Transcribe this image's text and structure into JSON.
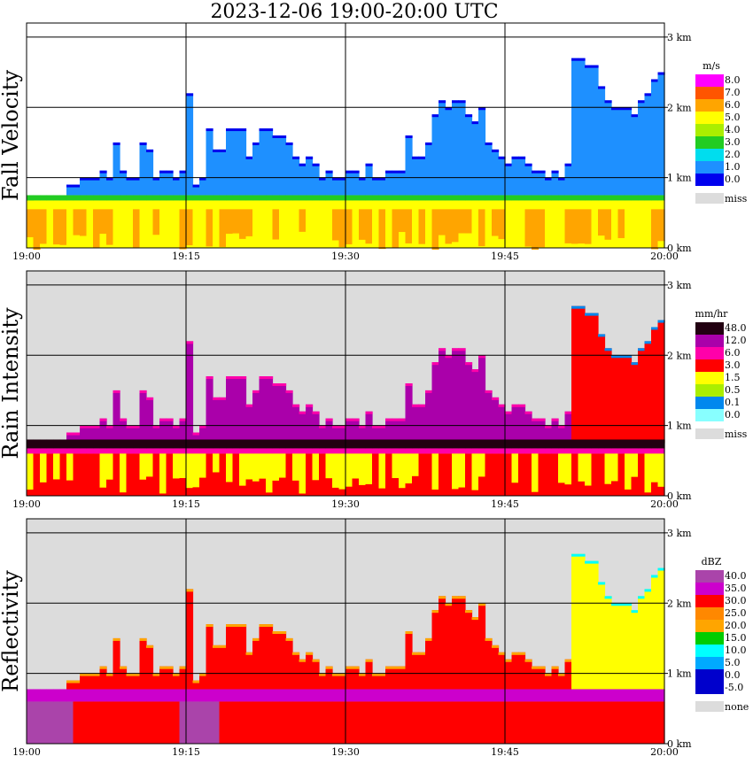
{
  "title": "2023-12-06   19:00-20:00 UTC",
  "x_ticks": [
    "19:00",
    "19:15",
    "19:30",
    "19:45",
    "20:00"
  ],
  "height_ticks": [
    "0 km",
    "1 km",
    "2 km",
    "3 km"
  ],
  "colors": {
    "missing_background": "#dcdcdc",
    "grid": "#000000",
    "fallvel": [
      "#0000ee",
      "#1e90ff",
      "#00ddee",
      "#22cc22",
      "#aaee00",
      "#ffff00",
      "#ffa500",
      "#ff5500",
      "#ff00ff"
    ],
    "rain": [
      "#ffffff",
      "#88ffff",
      "#0088ee",
      "#22cc22",
      "#aaee00",
      "#ffff00",
      "#ff8800",
      "#ff0000",
      "#ff00aa",
      "#aa00aa",
      "#220011"
    ],
    "dbz": [
      "#0000cc",
      "#00aaff",
      "#00ffff",
      "#00cc00",
      "#ffff00",
      "#ffa500",
      "#ff8800",
      "#ff0000",
      "#cc00cc",
      "#aa44aa"
    ]
  },
  "chart_data": [
    {
      "type": "heatmap",
      "panel": "Fall Velocity",
      "ylabel": "Fall Velocity",
      "unit": "m/s",
      "x_range": [
        "19:00",
        "20:00"
      ],
      "y_range_km": [
        0,
        3.2
      ],
      "legend_labels": [
        "8.0",
        "7.0",
        "6.0",
        "5.0",
        "4.0",
        "3.0",
        "2.0",
        "1.0",
        "0.0"
      ],
      "legend_missing": "miss",
      "echo_top_km": [
        0.7,
        0.5,
        0.3,
        0.4,
        0.6,
        0.3,
        0.9,
        0.9,
        1.0,
        1.0,
        1.0,
        1.1,
        1.0,
        1.5,
        1.1,
        1.0,
        1.0,
        1.5,
        1.4,
        1.0,
        1.1,
        1.1,
        1.0,
        1.1,
        2.2,
        0.9,
        1.0,
        1.7,
        1.4,
        1.4,
        1.7,
        1.7,
        1.7,
        1.3,
        1.5,
        1.7,
        1.7,
        1.6,
        1.6,
        1.5,
        1.3,
        1.2,
        1.3,
        1.2,
        1.0,
        1.1,
        1.0,
        1.0,
        1.1,
        1.1,
        1.0,
        1.2,
        1.0,
        1.0,
        1.1,
        1.1,
        1.1,
        1.6,
        1.3,
        1.3,
        1.5,
        1.9,
        2.1,
        2.0,
        2.1,
        2.1,
        1.9,
        1.8,
        2.0,
        1.5,
        1.4,
        1.3,
        1.2,
        1.3,
        1.3,
        1.2,
        1.1,
        1.1,
        1.0,
        1.1,
        1.0,
        1.2,
        2.7,
        2.7,
        2.6,
        2.6,
        2.3,
        2.1,
        2.0,
        2.0,
        2.0,
        1.9,
        2.1,
        2.2,
        2.4,
        2.5
      ]
    },
    {
      "type": "heatmap",
      "panel": "Rain Intensity",
      "ylabel": "Rain Intensity",
      "unit": "mm/hr",
      "x_range": [
        "19:00",
        "20:00"
      ],
      "y_range_km": [
        0,
        3.2
      ],
      "legend_labels": [
        "48.0",
        "12.0",
        "6.0",
        "3.0",
        "1.5",
        "0.5",
        "0.1",
        "0.0"
      ],
      "legend_missing": "miss",
      "echo_top_km": [
        0.7,
        0.5,
        0.3,
        0.4,
        0.6,
        0.3,
        0.9,
        0.9,
        1.0,
        1.0,
        1.0,
        1.1,
        1.0,
        1.5,
        1.1,
        1.0,
        1.0,
        1.5,
        1.4,
        1.0,
        1.1,
        1.1,
        1.0,
        1.1,
        2.2,
        0.9,
        1.0,
        1.7,
        1.4,
        1.4,
        1.7,
        1.7,
        1.7,
        1.3,
        1.5,
        1.7,
        1.7,
        1.6,
        1.6,
        1.5,
        1.3,
        1.2,
        1.3,
        1.2,
        1.0,
        1.1,
        1.0,
        1.0,
        1.1,
        1.1,
        1.0,
        1.2,
        1.0,
        1.0,
        1.1,
        1.1,
        1.1,
        1.6,
        1.3,
        1.3,
        1.5,
        1.9,
        2.1,
        2.0,
        2.1,
        2.1,
        1.9,
        1.8,
        2.0,
        1.5,
        1.4,
        1.3,
        1.2,
        1.3,
        1.3,
        1.2,
        1.1,
        1.1,
        1.0,
        1.1,
        1.0,
        1.2,
        2.7,
        2.7,
        2.6,
        2.6,
        2.3,
        2.1,
        2.0,
        2.0,
        2.0,
        1.9,
        2.1,
        2.2,
        2.4,
        2.5
      ]
    },
    {
      "type": "heatmap",
      "panel": "Reflectivity",
      "ylabel": "Reflectivity",
      "unit": "dBZ",
      "x_range": [
        "19:00",
        "20:00"
      ],
      "y_range_km": [
        0,
        3.2
      ],
      "legend_labels": [
        "40.0",
        "35.0",
        "30.0",
        "25.0",
        "20.0",
        "15.0",
        "10.0",
        "5.0",
        "0.0",
        "-5.0"
      ],
      "legend_missing": "none",
      "echo_top_km": [
        0.7,
        0.5,
        0.3,
        0.4,
        0.6,
        0.3,
        0.9,
        0.9,
        1.0,
        1.0,
        1.0,
        1.1,
        1.0,
        1.5,
        1.1,
        1.0,
        1.0,
        1.5,
        1.4,
        1.0,
        1.1,
        1.1,
        1.0,
        1.1,
        2.2,
        0.9,
        1.0,
        1.7,
        1.4,
        1.4,
        1.7,
        1.7,
        1.7,
        1.3,
        1.5,
        1.7,
        1.7,
        1.6,
        1.6,
        1.5,
        1.3,
        1.2,
        1.3,
        1.2,
        1.0,
        1.1,
        1.0,
        1.0,
        1.1,
        1.1,
        1.0,
        1.2,
        1.0,
        1.0,
        1.1,
        1.1,
        1.1,
        1.6,
        1.3,
        1.3,
        1.5,
        1.9,
        2.1,
        2.0,
        2.1,
        2.1,
        1.9,
        1.8,
        2.0,
        1.5,
        1.4,
        1.3,
        1.2,
        1.3,
        1.3,
        1.2,
        1.1,
        1.1,
        1.0,
        1.1,
        1.0,
        1.2,
        2.7,
        2.7,
        2.6,
        2.6,
        2.3,
        2.1,
        2.0,
        2.0,
        2.0,
        1.9,
        2.1,
        2.2,
        2.4,
        2.5
      ]
    }
  ]
}
